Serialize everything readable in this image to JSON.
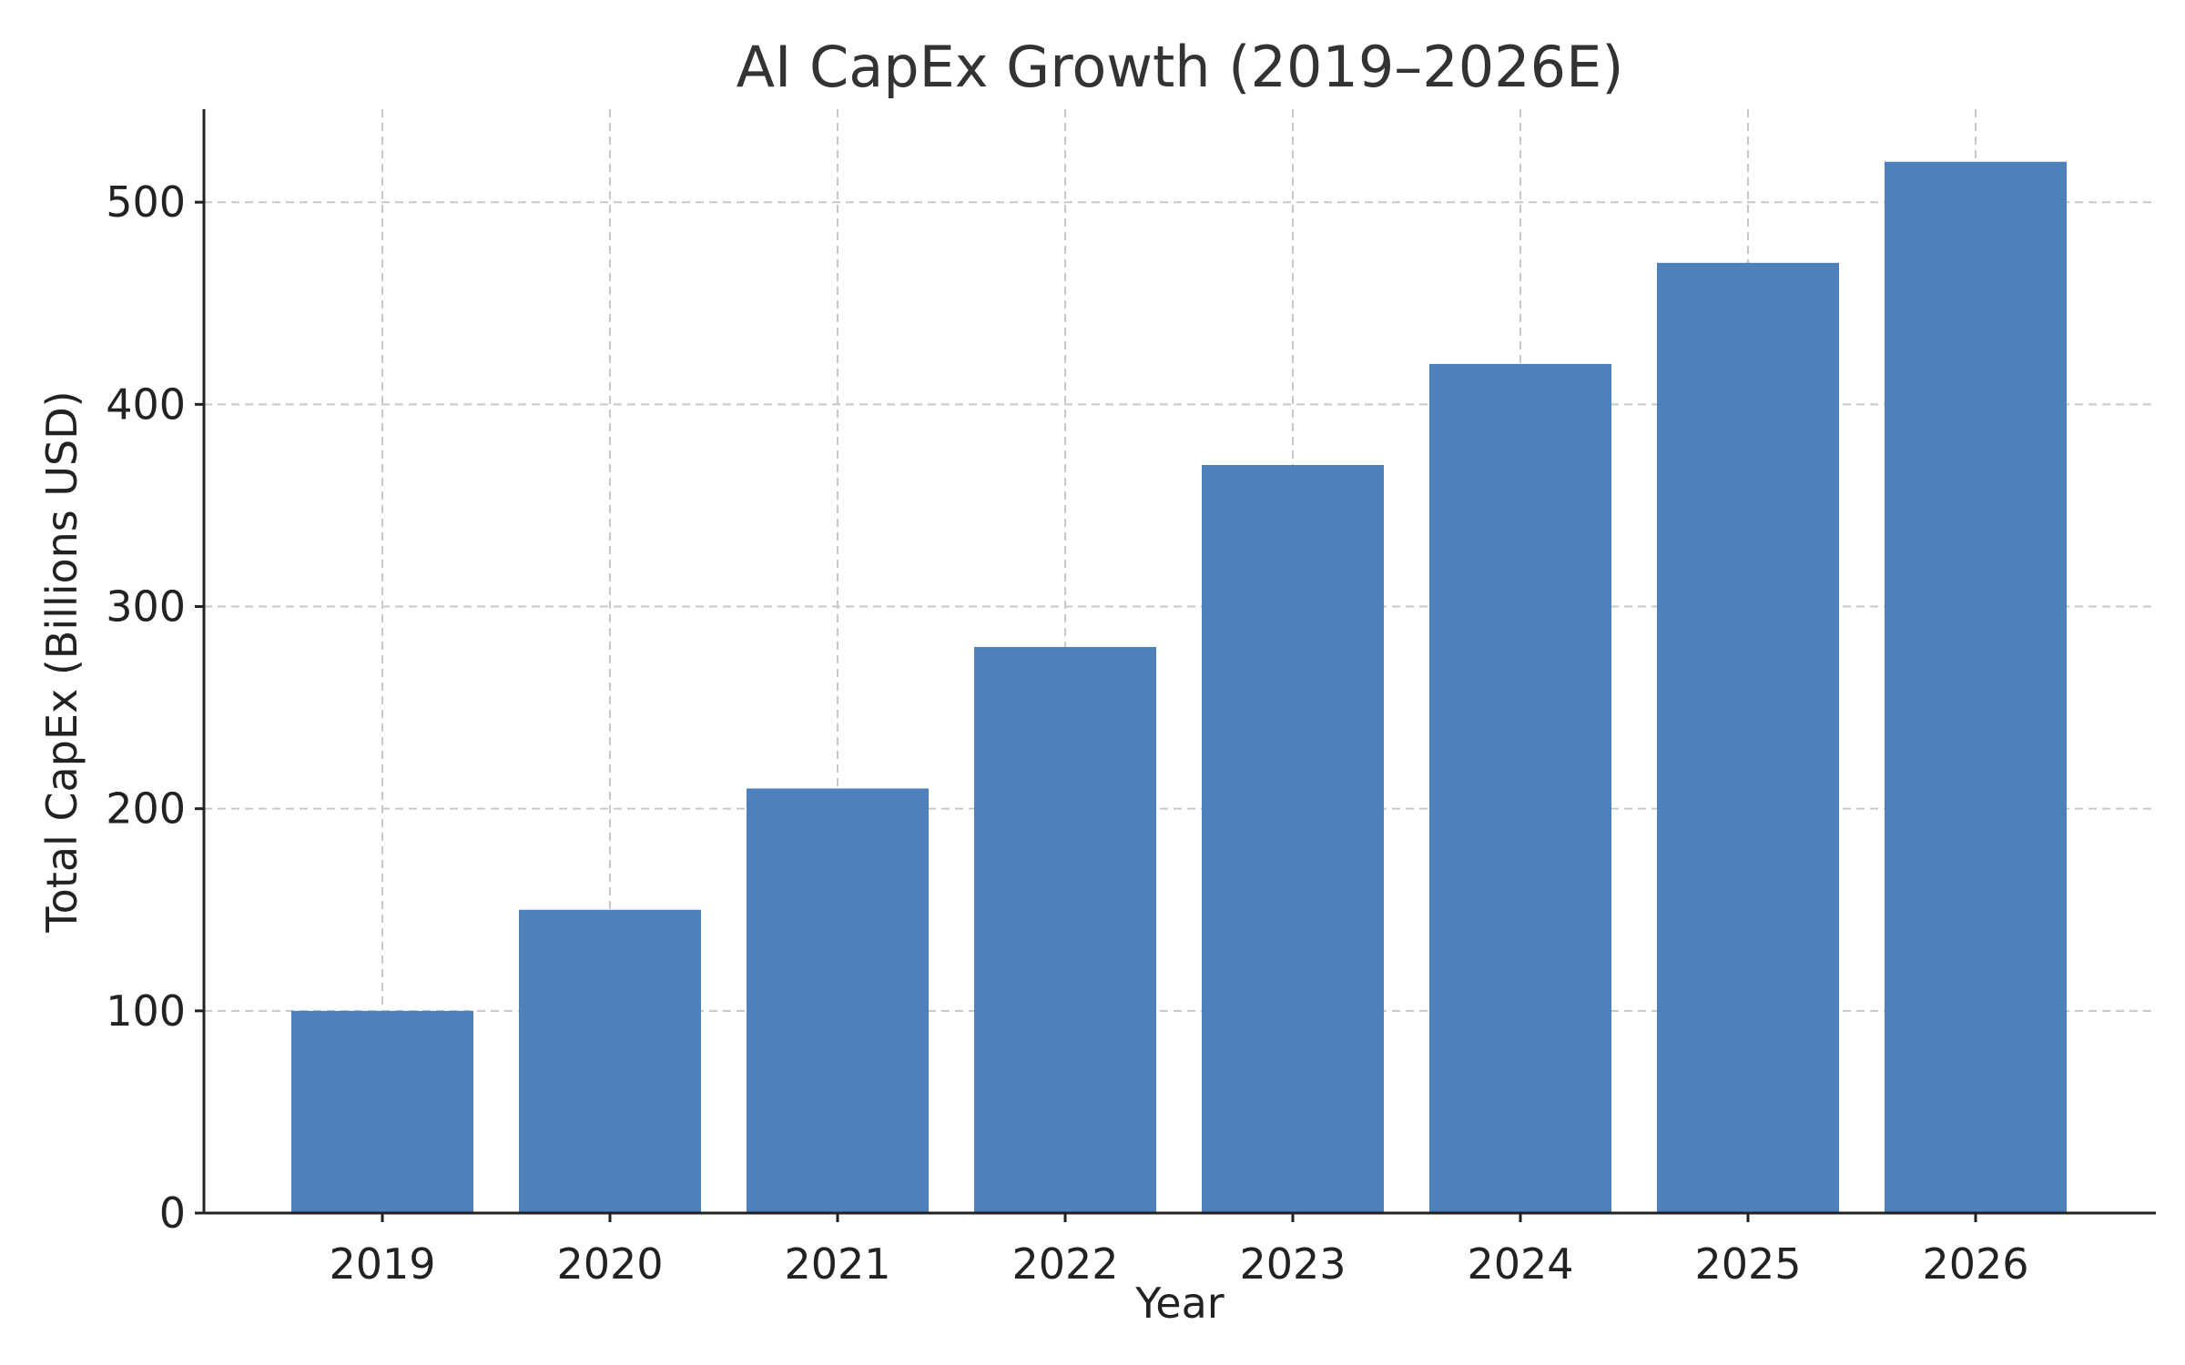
{
  "chart_data": {
    "type": "bar",
    "title": "AI CapEx Growth (2019–2026E)",
    "xlabel": "Year",
    "ylabel": "Total CapEx (Billions USD)",
    "categories": [
      "2019",
      "2020",
      "2021",
      "2022",
      "2023",
      "2024",
      "2025",
      "2026"
    ],
    "values": [
      100,
      150,
      210,
      280,
      370,
      420,
      470,
      520
    ],
    "ylim": [
      0,
      546
    ],
    "yticks": [
      0,
      100,
      200,
      300,
      400,
      500
    ],
    "grid": true,
    "bar_color": "#4e80bb"
  }
}
